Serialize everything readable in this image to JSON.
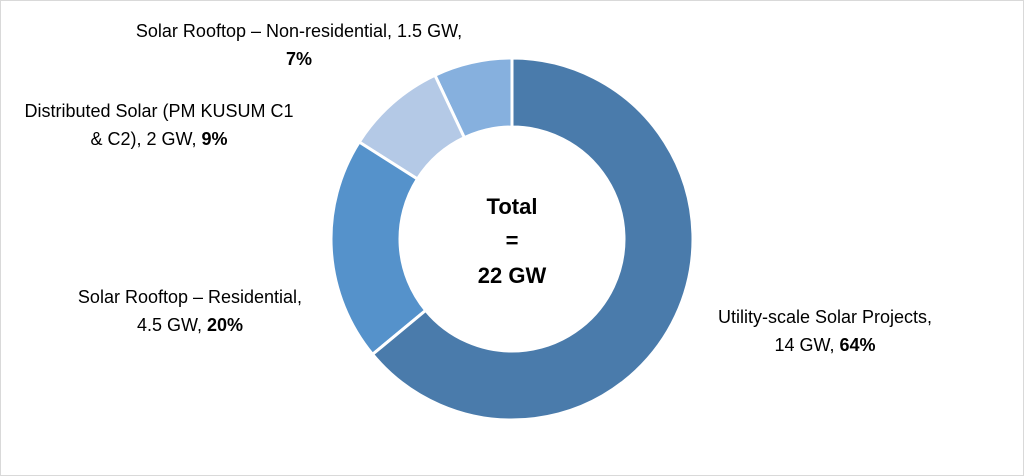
{
  "chart_data": {
    "type": "donut",
    "center_text": [
      "Total",
      "=",
      "22 GW"
    ],
    "labels": [
      [
        "Utility-scale Solar Projects,",
        "14 GW, "
      ],
      [
        "Solar Rooftop – Residential,",
        "4.5 GW, "
      ],
      [
        "Distributed Solar (PM KUSUM C1",
        "& C2), 2 GW, "
      ],
      [
        "Solar Rooftop – Non-residential, 1.5 GW,"
      ]
    ],
    "values": [
      64,
      20,
      9,
      7
    ],
    "value_labels": [
      "64%",
      "20%",
      "9%",
      "7%"
    ],
    "colors": [
      "#4a7bab",
      "#5592cb",
      "#b4c9e6",
      "#86b0de"
    ]
  }
}
